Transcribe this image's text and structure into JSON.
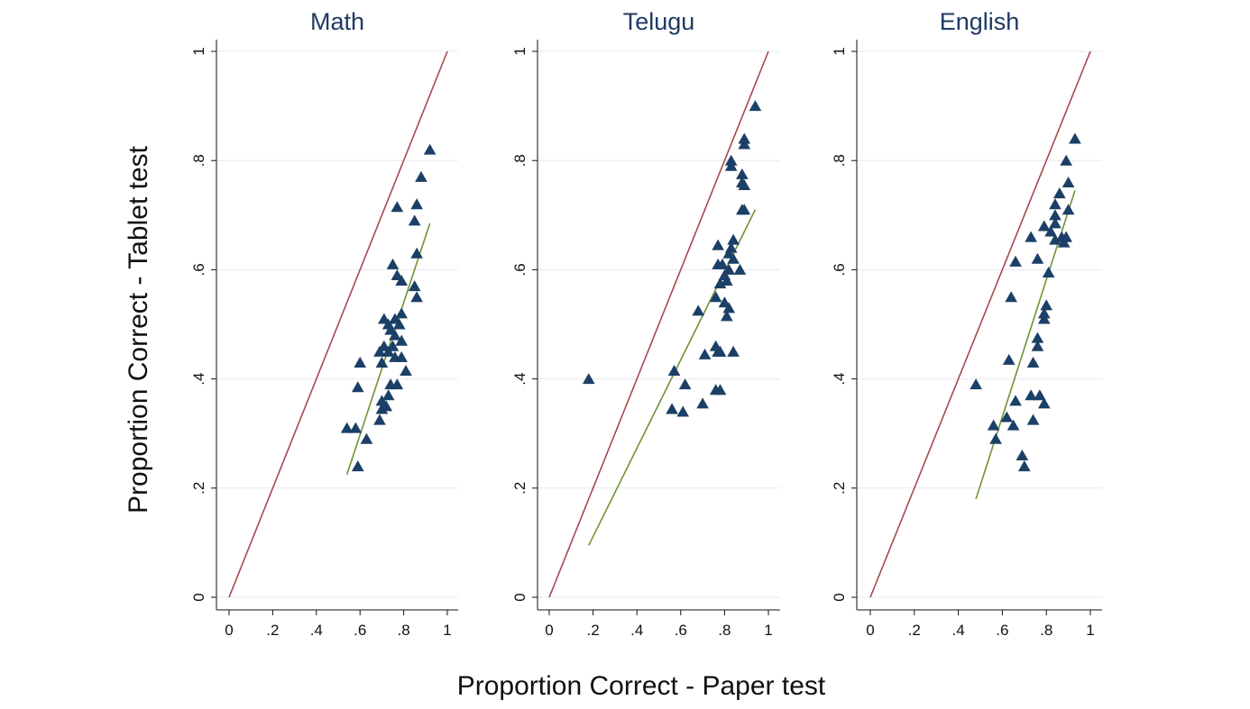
{
  "chart_data": {
    "type": "scatter",
    "xlabel": "Proportion Correct - Paper test",
    "ylabel": "Proportion Correct - Tablet test",
    "xlim": [
      0,
      1
    ],
    "ylim": [
      0,
      1
    ],
    "x_ticks": [
      0,
      0.2,
      0.4,
      0.6,
      0.8,
      1
    ],
    "x_tick_labels": [
      "0",
      ".2",
      ".4",
      ".6",
      ".8",
      "1"
    ],
    "y_ticks": [
      0,
      0.2,
      0.4,
      0.6,
      0.8,
      1
    ],
    "y_tick_labels": [
      "0",
      ".2",
      ".4",
      ".6",
      ".8",
      "1"
    ],
    "grid": true,
    "marker": "triangle",
    "colors": {
      "points": "#1b3f66",
      "identity_line": "#a8474f",
      "fit_line": "#6f9436",
      "grid": "#e7eaf1"
    },
    "panels": [
      {
        "title": "Math",
        "identity_line": [
          [
            0,
            0
          ],
          [
            1,
            1
          ]
        ],
        "fit_line": [
          [
            0.54,
            0.225
          ],
          [
            0.92,
            0.685
          ]
        ],
        "points": [
          [
            0.92,
            0.82
          ],
          [
            0.88,
            0.77
          ],
          [
            0.77,
            0.715
          ],
          [
            0.86,
            0.72
          ],
          [
            0.85,
            0.69
          ],
          [
            0.86,
            0.63
          ],
          [
            0.75,
            0.61
          ],
          [
            0.77,
            0.59
          ],
          [
            0.79,
            0.58
          ],
          [
            0.85,
            0.57
          ],
          [
            0.86,
            0.55
          ],
          [
            0.79,
            0.52
          ],
          [
            0.71,
            0.51
          ],
          [
            0.73,
            0.5
          ],
          [
            0.76,
            0.51
          ],
          [
            0.78,
            0.5
          ],
          [
            0.74,
            0.49
          ],
          [
            0.76,
            0.48
          ],
          [
            0.79,
            0.47
          ],
          [
            0.75,
            0.46
          ],
          [
            0.71,
            0.46
          ],
          [
            0.69,
            0.45
          ],
          [
            0.73,
            0.45
          ],
          [
            0.76,
            0.44
          ],
          [
            0.79,
            0.44
          ],
          [
            0.7,
            0.43
          ],
          [
            0.6,
            0.43
          ],
          [
            0.81,
            0.415
          ],
          [
            0.74,
            0.39
          ],
          [
            0.77,
            0.39
          ],
          [
            0.59,
            0.385
          ],
          [
            0.73,
            0.37
          ],
          [
            0.7,
            0.36
          ],
          [
            0.72,
            0.35
          ],
          [
            0.7,
            0.345
          ],
          [
            0.69,
            0.325
          ],
          [
            0.54,
            0.31
          ],
          [
            0.58,
            0.31
          ],
          [
            0.63,
            0.29
          ],
          [
            0.59,
            0.24
          ]
        ]
      },
      {
        "title": "Telugu",
        "identity_line": [
          [
            0,
            0
          ],
          [
            1,
            1
          ]
        ],
        "fit_line": [
          [
            0.18,
            0.095
          ],
          [
            0.94,
            0.71
          ]
        ],
        "points": [
          [
            0.94,
            0.9
          ],
          [
            0.89,
            0.84
          ],
          [
            0.89,
            0.83
          ],
          [
            0.83,
            0.8
          ],
          [
            0.83,
            0.79
          ],
          [
            0.88,
            0.775
          ],
          [
            0.88,
            0.76
          ],
          [
            0.89,
            0.755
          ],
          [
            0.88,
            0.71
          ],
          [
            0.89,
            0.71
          ],
          [
            0.84,
            0.655
          ],
          [
            0.77,
            0.645
          ],
          [
            0.83,
            0.64
          ],
          [
            0.82,
            0.63
          ],
          [
            0.84,
            0.62
          ],
          [
            0.77,
            0.61
          ],
          [
            0.79,
            0.61
          ],
          [
            0.82,
            0.6
          ],
          [
            0.87,
            0.6
          ],
          [
            0.8,
            0.59
          ],
          [
            0.81,
            0.58
          ],
          [
            0.78,
            0.575
          ],
          [
            0.76,
            0.55
          ],
          [
            0.8,
            0.54
          ],
          [
            0.82,
            0.53
          ],
          [
            0.68,
            0.525
          ],
          [
            0.81,
            0.515
          ],
          [
            0.76,
            0.46
          ],
          [
            0.77,
            0.45
          ],
          [
            0.78,
            0.45
          ],
          [
            0.71,
            0.445
          ],
          [
            0.84,
            0.45
          ],
          [
            0.57,
            0.415
          ],
          [
            0.62,
            0.39
          ],
          [
            0.18,
            0.4
          ],
          [
            0.76,
            0.38
          ],
          [
            0.78,
            0.38
          ],
          [
            0.7,
            0.355
          ],
          [
            0.56,
            0.345
          ],
          [
            0.61,
            0.34
          ]
        ]
      },
      {
        "title": "English",
        "identity_line": [
          [
            0,
            0
          ],
          [
            1,
            1
          ]
        ],
        "fit_line": [
          [
            0.48,
            0.18
          ],
          [
            0.93,
            0.745
          ]
        ],
        "points": [
          [
            0.93,
            0.84
          ],
          [
            0.89,
            0.8
          ],
          [
            0.9,
            0.76
          ],
          [
            0.86,
            0.74
          ],
          [
            0.84,
            0.72
          ],
          [
            0.84,
            0.7
          ],
          [
            0.9,
            0.71
          ],
          [
            0.79,
            0.68
          ],
          [
            0.82,
            0.67
          ],
          [
            0.84,
            0.685
          ],
          [
            0.73,
            0.66
          ],
          [
            0.84,
            0.655
          ],
          [
            0.87,
            0.66
          ],
          [
            0.89,
            0.66
          ],
          [
            0.88,
            0.65
          ],
          [
            0.76,
            0.62
          ],
          [
            0.66,
            0.615
          ],
          [
            0.81,
            0.595
          ],
          [
            0.64,
            0.55
          ],
          [
            0.8,
            0.535
          ],
          [
            0.79,
            0.52
          ],
          [
            0.79,
            0.51
          ],
          [
            0.76,
            0.475
          ],
          [
            0.76,
            0.46
          ],
          [
            0.74,
            0.43
          ],
          [
            0.63,
            0.435
          ],
          [
            0.48,
            0.39
          ],
          [
            0.73,
            0.37
          ],
          [
            0.77,
            0.37
          ],
          [
            0.66,
            0.36
          ],
          [
            0.79,
            0.355
          ],
          [
            0.56,
            0.315
          ],
          [
            0.62,
            0.33
          ],
          [
            0.65,
            0.315
          ],
          [
            0.74,
            0.325
          ],
          [
            0.57,
            0.29
          ],
          [
            0.69,
            0.26
          ],
          [
            0.7,
            0.24
          ]
        ]
      }
    ]
  }
}
